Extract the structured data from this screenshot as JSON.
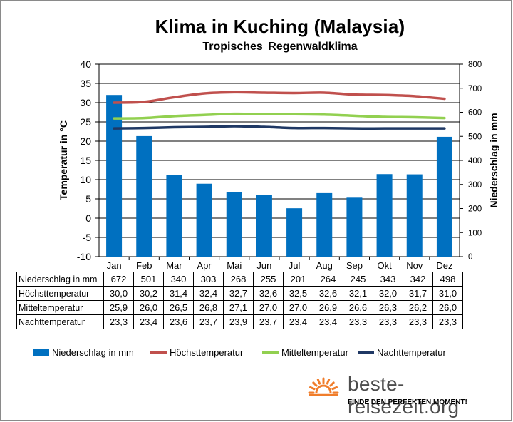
{
  "title": "Klima in Kuching (Malaysia)",
  "subtitle": "Tropisches  Regenwaldklima",
  "chart_data": {
    "type": "bar",
    "categories": [
      "Jan",
      "Feb",
      "Mar",
      "Apr",
      "Mai",
      "Jun",
      "Jul",
      "Aug",
      "Sep",
      "Okt",
      "Nov",
      "Dez"
    ],
    "y_left": {
      "label": "Temperatur in °C",
      "lim": [
        -10,
        40
      ],
      "ticks": [
        "-10",
        "-5",
        "0",
        "5",
        "10",
        "15",
        "20",
        "25",
        "30",
        "35",
        "40"
      ]
    },
    "y_right": {
      "label": "Niederschlag in mm",
      "lim": [
        0,
        800
      ],
      "ticks": [
        "0",
        "100",
        "200",
        "300",
        "400",
        "500",
        "600",
        "700",
        "800"
      ]
    },
    "grid": "horizontal",
    "legend_position": "bottom",
    "series": [
      {
        "name": "Niederschlag in mm",
        "kind": "bar",
        "axis": "right",
        "color": "#0070c0",
        "values": [
          672,
          501,
          340,
          303,
          268,
          255,
          201,
          264,
          245,
          343,
          342,
          498
        ],
        "display": [
          "672",
          "501",
          "340",
          "303",
          "268",
          "255",
          "201",
          "264",
          "245",
          "343",
          "342",
          "498"
        ]
      },
      {
        "name": "Höchsttemperatur",
        "kind": "line",
        "axis": "left",
        "color": "#c0504d",
        "values": [
          30.0,
          30.2,
          31.4,
          32.4,
          32.7,
          32.6,
          32.5,
          32.6,
          32.1,
          32.0,
          31.7,
          31.0
        ],
        "display": [
          "30,0",
          "30,2",
          "31,4",
          "32,4",
          "32,7",
          "32,6",
          "32,5",
          "32,6",
          "32,1",
          "32,0",
          "31,7",
          "31,0"
        ]
      },
      {
        "name": "Mitteltemperatur",
        "kind": "line",
        "axis": "left",
        "color": "#92d050",
        "values": [
          25.9,
          26.0,
          26.5,
          26.8,
          27.1,
          27.0,
          27.0,
          26.9,
          26.6,
          26.3,
          26.2,
          26.0
        ],
        "display": [
          "25,9",
          "26,0",
          "26,5",
          "26,8",
          "27,1",
          "27,0",
          "27,0",
          "26,9",
          "26,6",
          "26,3",
          "26,2",
          "26,0"
        ]
      },
      {
        "name": "Nachttemperatur",
        "kind": "line",
        "axis": "left",
        "color": "#1f3864",
        "values": [
          23.3,
          23.4,
          23.6,
          23.7,
          23.9,
          23.7,
          23.4,
          23.4,
          23.3,
          23.3,
          23.3,
          23.3
        ],
        "display": [
          "23,3",
          "23,4",
          "23,6",
          "23,7",
          "23,9",
          "23,7",
          "23,4",
          "23,4",
          "23,3",
          "23,3",
          "23,3",
          "23,3"
        ]
      }
    ],
    "table_rows": [
      "Niederschlag in mm",
      "Höchsttemperatur",
      "Mitteltemperatur",
      "Nachttemperatur"
    ]
  },
  "brand": {
    "name": "beste-reisezeit.org",
    "slogan": "FINDE DEN PERFEKTEN MOMENT!",
    "sun_color": "#f07d2b"
  }
}
